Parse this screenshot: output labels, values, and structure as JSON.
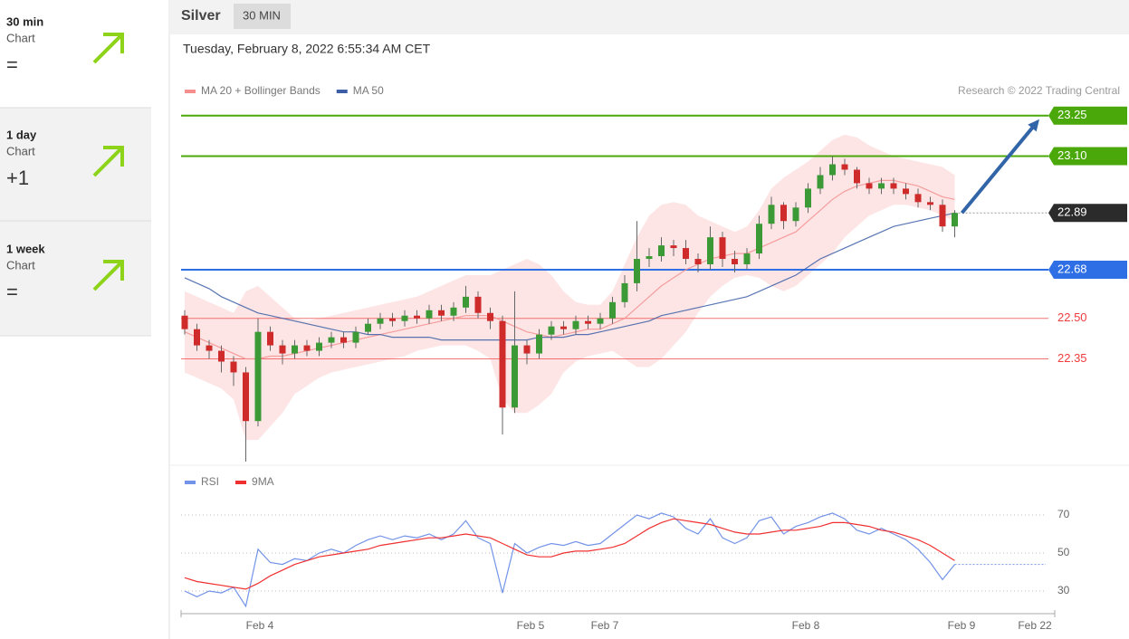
{
  "sidebar": [
    {
      "period": "30 min",
      "label": "Chart",
      "change": "="
    },
    {
      "period": "1 day",
      "label": "Chart",
      "change": "+1"
    },
    {
      "period": "1 week",
      "label": "Chart",
      "change": "="
    }
  ],
  "header": {
    "title": "Silver",
    "badge": "30 MIN",
    "date": "Tuesday, February 8, 2022 6:55:34 AM CET"
  },
  "chart_data": [
    {
      "type": "candlestick",
      "credit": "Research © 2022 Trading Central",
      "up_color": "#3c9a36",
      "down_color": "#cf2b2b",
      "ylim": [
        21.97,
        23.276
      ],
      "open": [
        22.51,
        22.46,
        22.4,
        22.38,
        22.34,
        22.3,
        22.12,
        22.45,
        22.4,
        22.37,
        22.4,
        22.38,
        22.41,
        22.43,
        22.41,
        22.45,
        22.48,
        22.5,
        22.49,
        22.51,
        22.5,
        22.53,
        22.51,
        22.54,
        22.58,
        22.52,
        22.49,
        22.17,
        22.4,
        22.37,
        22.44,
        22.47,
        22.46,
        22.49,
        22.48,
        22.5,
        22.56,
        22.63,
        22.72,
        22.73,
        22.77,
        22.76,
        22.72,
        22.7,
        22.8,
        22.72,
        22.7,
        22.74,
        22.85,
        22.92,
        22.86,
        22.91,
        22.98,
        23.03,
        23.07,
        23.05,
        23.0,
        22.98,
        23.0,
        22.98,
        22.96,
        22.93,
        22.92,
        22.84
      ],
      "high": [
        22.53,
        22.48,
        22.42,
        22.4,
        22.36,
        22.32,
        22.5,
        22.47,
        22.42,
        22.42,
        22.42,
        22.43,
        22.45,
        22.45,
        22.47,
        22.5,
        22.52,
        22.52,
        22.53,
        22.53,
        22.55,
        22.55,
        22.56,
        22.62,
        22.6,
        22.54,
        22.51,
        22.6,
        22.42,
        22.46,
        22.49,
        22.49,
        22.51,
        22.51,
        22.52,
        22.58,
        22.66,
        22.86,
        22.76,
        22.8,
        22.79,
        22.79,
        22.74,
        22.84,
        22.82,
        22.75,
        22.76,
        22.88,
        22.95,
        22.93,
        22.93,
        23.0,
        23.06,
        23.1,
        23.09,
        23.06,
        23.02,
        23.02,
        23.02,
        23.0,
        22.98,
        22.95,
        22.94,
        22.9
      ],
      "low": [
        22.44,
        22.38,
        22.35,
        22.3,
        22.25,
        21.97,
        22.1,
        22.38,
        22.33,
        22.35,
        22.36,
        22.36,
        22.39,
        22.39,
        22.39,
        22.44,
        22.46,
        22.47,
        22.47,
        22.48,
        22.48,
        22.49,
        22.49,
        22.52,
        22.5,
        22.46,
        22.07,
        22.15,
        22.33,
        22.35,
        22.42,
        22.44,
        22.44,
        22.46,
        22.46,
        22.48,
        22.54,
        22.6,
        22.69,
        22.71,
        22.73,
        22.7,
        22.67,
        22.68,
        22.69,
        22.67,
        22.68,
        22.72,
        22.83,
        22.83,
        22.84,
        22.89,
        22.96,
        23.01,
        23.03,
        22.98,
        22.96,
        22.96,
        22.96,
        22.94,
        22.91,
        22.9,
        22.82,
        22.8
      ],
      "close": [
        22.46,
        22.4,
        22.38,
        22.34,
        22.3,
        22.12,
        22.45,
        22.4,
        22.37,
        22.4,
        22.38,
        22.41,
        22.43,
        22.41,
        22.45,
        22.48,
        22.5,
        22.49,
        22.51,
        22.5,
        22.53,
        22.51,
        22.54,
        22.58,
        22.52,
        22.49,
        22.17,
        22.4,
        22.37,
        22.44,
        22.47,
        22.46,
        22.49,
        22.48,
        22.5,
        22.56,
        22.63,
        22.72,
        22.73,
        22.77,
        22.76,
        22.72,
        22.7,
        22.8,
        22.72,
        22.7,
        22.74,
        22.85,
        22.92,
        22.86,
        22.91,
        22.98,
        23.03,
        23.07,
        23.05,
        23.0,
        22.98,
        23.0,
        22.98,
        22.96,
        22.93,
        22.92,
        22.84,
        22.89
      ],
      "series": [
        {
          "name": "MA 20 + Bollinger Bands",
          "color": "#f58f8f",
          "band_color": "#fde0e0",
          "values": [
            22.45,
            22.43,
            22.41,
            22.39,
            22.37,
            22.35,
            22.35,
            22.36,
            22.36,
            22.37,
            22.38,
            22.39,
            22.4,
            22.41,
            22.42,
            22.43,
            22.44,
            22.45,
            22.46,
            22.47,
            22.48,
            22.49,
            22.5,
            22.51,
            22.51,
            22.51,
            22.49,
            22.47,
            22.45,
            22.44,
            22.43,
            22.44,
            22.45,
            22.46,
            22.46,
            22.48,
            22.5,
            22.54,
            22.58,
            22.62,
            22.65,
            22.68,
            22.7,
            22.72,
            22.73,
            22.74,
            22.74,
            22.76,
            22.78,
            22.8,
            22.82,
            22.86,
            22.9,
            22.94,
            22.97,
            22.99,
            23.0,
            23.01,
            23.01,
            23.0,
            22.99,
            22.97,
            22.95,
            22.94
          ],
          "upper": [
            22.6,
            22.58,
            22.56,
            22.54,
            22.52,
            22.6,
            22.62,
            22.58,
            22.54,
            22.5,
            22.49,
            22.5,
            22.51,
            22.52,
            22.53,
            22.54,
            22.55,
            22.56,
            22.57,
            22.58,
            22.6,
            22.62,
            22.64,
            22.66,
            22.66,
            22.66,
            22.68,
            22.7,
            22.72,
            22.7,
            22.66,
            22.6,
            22.56,
            22.55,
            22.55,
            22.6,
            22.7,
            22.8,
            22.88,
            22.92,
            22.93,
            22.92,
            22.88,
            22.86,
            22.84,
            22.82,
            22.84,
            22.9,
            22.98,
            23.02,
            23.05,
            23.08,
            23.12,
            23.16,
            23.18,
            23.17,
            23.14,
            23.12,
            23.1,
            23.09,
            23.08,
            23.07,
            23.06,
            23.03
          ],
          "lower": [
            22.3,
            22.28,
            22.26,
            22.24,
            22.2,
            22.05,
            22.05,
            22.1,
            22.15,
            22.22,
            22.25,
            22.28,
            22.3,
            22.31,
            22.32,
            22.33,
            22.34,
            22.35,
            22.36,
            22.38,
            22.39,
            22.4,
            22.4,
            22.4,
            22.38,
            22.35,
            22.2,
            22.15,
            22.15,
            22.18,
            22.22,
            22.3,
            22.34,
            22.36,
            22.37,
            22.38,
            22.35,
            22.32,
            22.32,
            22.35,
            22.4,
            22.45,
            22.52,
            22.58,
            22.62,
            22.65,
            22.66,
            22.65,
            22.62,
            22.6,
            22.62,
            22.66,
            22.7,
            22.74,
            22.8,
            22.84,
            22.88,
            22.9,
            22.92,
            22.92,
            22.91,
            22.9,
            22.88,
            22.86
          ]
        },
        {
          "name": "MA 50",
          "color": "#3b5ea6",
          "values": [
            22.65,
            22.63,
            22.61,
            22.58,
            22.56,
            22.54,
            22.52,
            22.51,
            22.5,
            22.49,
            22.48,
            22.47,
            22.46,
            22.45,
            22.45,
            22.44,
            22.44,
            22.43,
            22.43,
            22.43,
            22.43,
            22.42,
            22.42,
            22.42,
            22.42,
            22.42,
            22.42,
            22.42,
            22.42,
            22.43,
            22.43,
            22.43,
            22.44,
            22.44,
            22.45,
            22.46,
            22.47,
            22.48,
            22.49,
            22.51,
            22.52,
            22.53,
            22.54,
            22.55,
            22.56,
            22.57,
            22.58,
            22.6,
            22.62,
            22.64,
            22.66,
            22.69,
            22.72,
            22.74,
            22.76,
            22.78,
            22.8,
            22.82,
            22.84,
            22.85,
            22.86,
            22.87,
            22.88,
            22.89
          ]
        }
      ],
      "levels": [
        {
          "value": 23.25,
          "label": "23.25",
          "color": "#4aa80a",
          "style": "line-tag"
        },
        {
          "value": 23.1,
          "label": "23.10",
          "color": "#4aa80a",
          "style": "line-tag"
        },
        {
          "value": 22.89,
          "label": "22.89",
          "color": "#2b2b2b",
          "style": "dotted-tag"
        },
        {
          "value": 22.68,
          "label": "22.68",
          "color": "#2f6fe6",
          "style": "line-tag"
        },
        {
          "value": 22.5,
          "label": "22.50",
          "color": "#f03c3c",
          "style": "line-text"
        },
        {
          "value": 22.35,
          "label": "22.35",
          "color": "#f03c3c",
          "style": "line-text"
        }
      ],
      "x_labels": [
        "Feb 4",
        "Feb 5",
        "Feb 7",
        "Feb 8",
        "Feb 9",
        "Feb 22"
      ]
    },
    {
      "type": "line",
      "ylim": [
        20,
        80
      ],
      "yticks": [
        30,
        50,
        70
      ],
      "grid": true,
      "series": [
        {
          "name": "RSI",
          "color": "#7393e8",
          "values": [
            30,
            27,
            30,
            29,
            32,
            22,
            52,
            45,
            44,
            47,
            46,
            50,
            52,
            50,
            54,
            57,
            59,
            57,
            59,
            58,
            60,
            57,
            60,
            67,
            58,
            55,
            29,
            55,
            50,
            53,
            55,
            54,
            56,
            54,
            55,
            60,
            65,
            70,
            68,
            71,
            69,
            63,
            60,
            68,
            58,
            55,
            58,
            67,
            69,
            60,
            64,
            66,
            69,
            71,
            68,
            62,
            60,
            63,
            60,
            57,
            52,
            45,
            36,
            44
          ]
        },
        {
          "name": "9MA",
          "color": "#f03030",
          "values": [
            37,
            35,
            34,
            33,
            32,
            31,
            34,
            38,
            41,
            44,
            46,
            48,
            49,
            50,
            51,
            52,
            54,
            55,
            56,
            57,
            58,
            58,
            59,
            60,
            59,
            58,
            55,
            52,
            49,
            48,
            48,
            50,
            51,
            51,
            52,
            53,
            55,
            59,
            63,
            66,
            68,
            67,
            66,
            65,
            63,
            61,
            60,
            60,
            61,
            62,
            62,
            63,
            64,
            66,
            66,
            65,
            64,
            62,
            61,
            59,
            57,
            54,
            50,
            46
          ]
        }
      ]
    }
  ]
}
